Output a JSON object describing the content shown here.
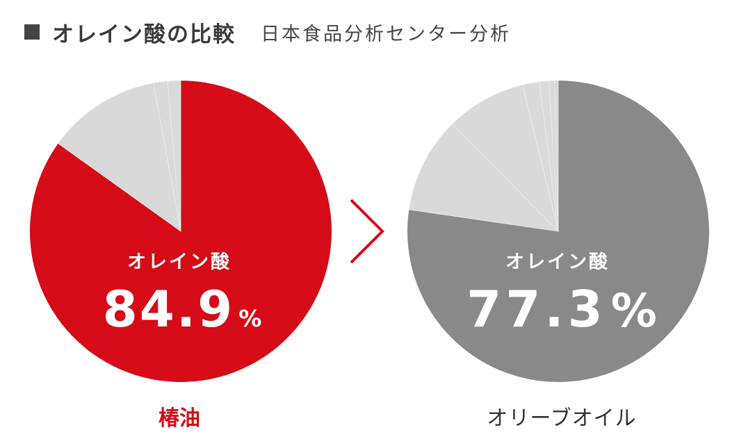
{
  "header": {
    "title": "オレイン酸の比較",
    "subtitle": "日本食品分析センター分析"
  },
  "chart_data": [
    {
      "type": "pie",
      "name": "椿油",
      "label": "椿油",
      "center_label": "オレイン酸",
      "value_text": "84.9",
      "unit": "%",
      "main_value": 84.9,
      "other_values": [
        12.2,
        1.5,
        1.4
      ],
      "main_color": "#d50b18",
      "other_color": "#d9d9d9",
      "label_color": "#d50b18"
    },
    {
      "type": "pie",
      "name": "オリーブオイル",
      "label": "オリーブオイル",
      "center_label": "オレイン酸",
      "value_text": "77.3",
      "unit": "%",
      "main_value": 77.3,
      "other_values": [
        10.3,
        8.6,
        1.8,
        1.0,
        0.6,
        0.4
      ],
      "main_color": "#898989",
      "other_color": "#d9d9d9",
      "label_color": "#333333"
    }
  ],
  "comparison": {
    "symbol": ">",
    "color": "#d50b18"
  }
}
